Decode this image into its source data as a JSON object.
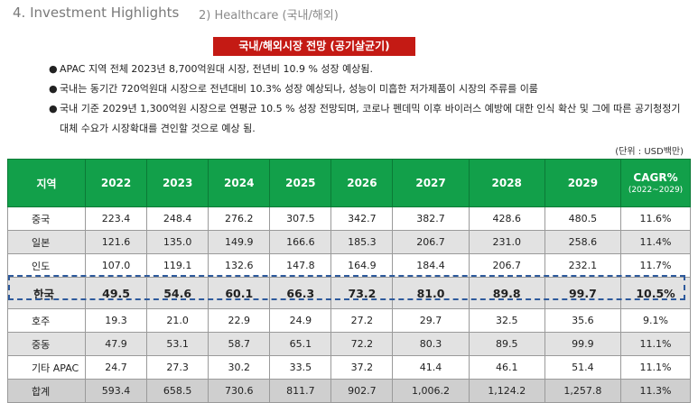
{
  "header": {
    "section": "4. Investment Highlights",
    "sub": "2) Healthcare (국내/해외)"
  },
  "banner": "국내/해외시장 전망 (공기살균기)",
  "bullets": [
    "APAC 지역 전체 2023년 8,700억원대 시장, 전년비 10.9 % 성장 예상됨.",
    "국내는 동기간 720억원대 시장으로 전년대비 10.3% 성장 예상되나, 성능이 미흡한 저가제품이 시장의 주류를 이룸",
    "국내 기준 2029년 1,300억원 시장으로 연평균 10.5 % 성장 전망되며, 코로나 펜데믹 이후 바이러스 예방에 대한 인식 확산 및 그에 따른 공기청정기 대체 수요가 시장확대를 견인할 것으로 예상 됨."
  ],
  "unit": "(단위 : USD백만)",
  "table": {
    "headers": [
      "지역",
      "2022",
      "2023",
      "2024",
      "2025",
      "2026",
      "2027",
      "2028",
      "2029",
      "CAGR%",
      "(2022~2029)"
    ],
    "rows": [
      [
        "중국",
        "223.4",
        "248.4",
        "276.2",
        "307.5",
        "342.7",
        "382.7",
        "428.6",
        "480.5",
        "11.6%"
      ],
      [
        "일본",
        "121.6",
        "135.0",
        "149.9",
        "166.6",
        "185.3",
        "206.7",
        "231.0",
        "258.6",
        "11.4%"
      ],
      [
        "인도",
        "107.0",
        "119.1",
        "132.6",
        "147.8",
        "164.9",
        "184.4",
        "206.7",
        "232.1",
        "11.7%"
      ],
      [
        "한국",
        "49.5",
        "54.6",
        "60.1",
        "66.3",
        "73.2",
        "81.0",
        "89.8",
        "99.7",
        "10.5%"
      ],
      [
        "호주",
        "19.3",
        "21.0",
        "22.9",
        "24.9",
        "27.2",
        "29.7",
        "32.5",
        "35.6",
        "9.1%"
      ],
      [
        "중동",
        "47.9",
        "53.1",
        "58.7",
        "65.1",
        "72.2",
        "80.3",
        "89.5",
        "99.9",
        "11.1%"
      ],
      [
        "기타 APAC",
        "24.7",
        "27.3",
        "30.2",
        "33.5",
        "37.2",
        "41.4",
        "46.1",
        "51.4",
        "11.1%"
      ],
      [
        "합계",
        "593.4",
        "658.5",
        "730.6",
        "811.7",
        "902.7",
        "1,006.2",
        "1,124.2",
        "1,257.8",
        "11.3%"
      ]
    ]
  }
}
